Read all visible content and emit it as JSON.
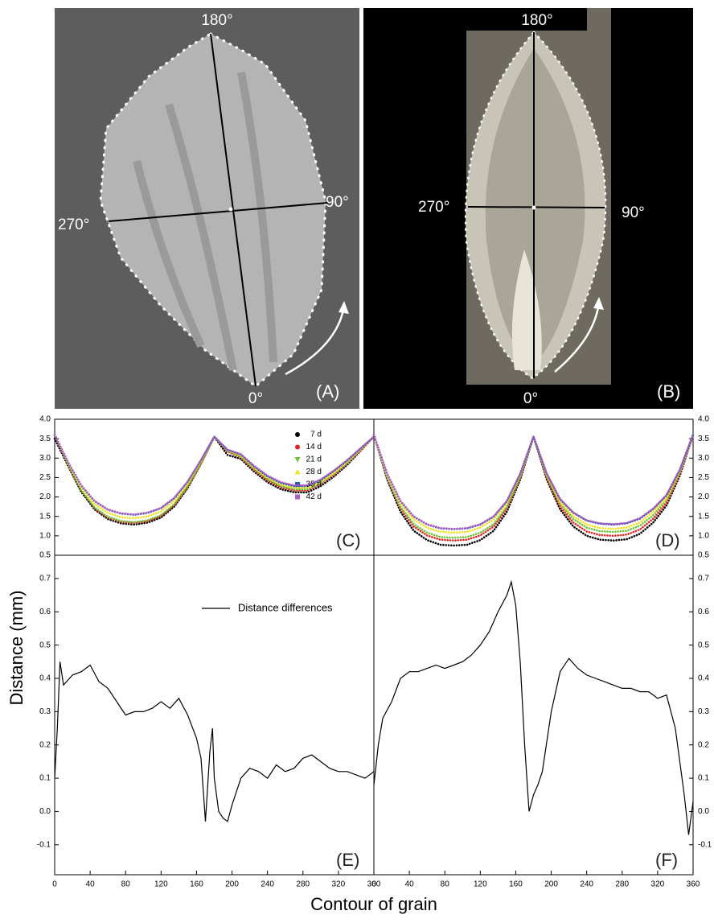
{
  "photos": [
    {
      "label": "(A)",
      "angles": [
        "180°",
        "90°",
        "270°",
        "0°"
      ]
    },
    {
      "label": "(B)",
      "angles": [
        "180°",
        "90°",
        "270°",
        "0°"
      ]
    }
  ],
  "ylabel": "Distance (mm)",
  "xlabel": "Contour of grain",
  "chart_data": [
    {
      "type": "line",
      "line_style": "dotted",
      "panel_label": "(C)",
      "yaxis": "left",
      "xlim": [
        0,
        360
      ],
      "ylim": [
        0.5,
        4.0
      ],
      "yticks": [
        0.5,
        {
          "value": 1,
          "label": "1.0"
        },
        1.5,
        {
          "value": 2,
          "label": "2.0"
        },
        2.5,
        {
          "value": 3,
          "label": "3.0"
        },
        3.5,
        {
          "value": 4,
          "label": "4.0"
        }
      ],
      "x": [
        0,
        15,
        30,
        45,
        60,
        75,
        90,
        105,
        120,
        135,
        150,
        165,
        180,
        195,
        210,
        225,
        240,
        255,
        270,
        285,
        300,
        315,
        330,
        345,
        360
      ],
      "series": [
        {
          "name": "7 d",
          "color": "#000000",
          "marker": "circle",
          "values": [
            3.5,
            2.81,
            2.13,
            1.68,
            1.43,
            1.32,
            1.29,
            1.34,
            1.47,
            1.76,
            2.23,
            2.86,
            3.55,
            3.08,
            2.98,
            2.65,
            2.38,
            2.2,
            2.12,
            2.12,
            2.28,
            2.53,
            2.83,
            3.19,
            3.55
          ]
        },
        {
          "name": "14 d",
          "color": "#e8231f",
          "marker": "circle",
          "values": [
            3.6,
            2.82,
            2.16,
            1.71,
            1.47,
            1.36,
            1.33,
            1.38,
            1.51,
            1.79,
            2.26,
            2.87,
            3.55,
            3.17,
            3.02,
            2.69,
            2.43,
            2.25,
            2.17,
            2.17,
            2.34,
            2.57,
            2.87,
            3.2,
            3.55
          ]
        },
        {
          "name": "21 d",
          "color": "#6cc23a",
          "marker": "triangle-down",
          "values": [
            3.6,
            2.83,
            2.17,
            1.73,
            1.49,
            1.38,
            1.35,
            1.4,
            1.53,
            1.81,
            2.27,
            2.88,
            3.55,
            3.19,
            3.03,
            2.72,
            2.46,
            2.28,
            2.2,
            2.2,
            2.36,
            2.6,
            2.88,
            3.22,
            3.55
          ]
        },
        {
          "name": "28 d",
          "color": "#f2e21c",
          "marker": "triangle",
          "values": [
            3.6,
            2.87,
            2.24,
            1.82,
            1.59,
            1.48,
            1.45,
            1.5,
            1.63,
            1.9,
            2.34,
            2.92,
            3.55,
            3.2,
            3.06,
            2.75,
            2.49,
            2.32,
            2.24,
            2.24,
            2.39,
            2.63,
            2.91,
            3.23,
            3.55
          ]
        },
        {
          "name": "35 d",
          "color": "#2b5ab0",
          "marker": "square",
          "values": [
            3.6,
            2.9,
            2.29,
            1.89,
            1.67,
            1.57,
            1.54,
            1.59,
            1.71,
            1.97,
            2.39,
            2.95,
            3.55,
            3.21,
            3.09,
            2.78,
            2.53,
            2.36,
            2.28,
            2.28,
            2.43,
            2.67,
            2.94,
            3.25,
            3.55
          ]
        },
        {
          "name": "42 d",
          "color": "#b05cc0",
          "marker": "square",
          "values": [
            3.6,
            2.9,
            2.3,
            1.9,
            1.68,
            1.58,
            1.55,
            1.6,
            1.72,
            1.98,
            2.4,
            2.95,
            3.55,
            3.22,
            3.1,
            2.8,
            2.55,
            2.38,
            2.3,
            2.3,
            2.45,
            2.68,
            2.95,
            3.25,
            3.55
          ]
        }
      ]
    },
    {
      "type": "line",
      "line_style": "dotted",
      "panel_label": "(D)",
      "yaxis": "right",
      "xlim": [
        0,
        360
      ],
      "ylim": [
        0.5,
        4.0
      ],
      "yticks": [
        0.5,
        {
          "value": 1,
          "label": "1.0"
        },
        1.5,
        {
          "value": 2,
          "label": "2.0"
        },
        2.5,
        {
          "value": 3,
          "label": "3.0"
        },
        3.5,
        {
          "value": 4,
          "label": "4.0"
        }
      ],
      "x": [
        0,
        15,
        30,
        45,
        60,
        75,
        90,
        105,
        120,
        135,
        150,
        165,
        180,
        195,
        210,
        225,
        240,
        255,
        270,
        285,
        300,
        315,
        330,
        345,
        360
      ],
      "series": [
        {
          "color": "#000000",
          "values": [
            3.6,
            2.45,
            1.62,
            1.13,
            0.89,
            0.77,
            0.75,
            0.77,
            0.89,
            1.13,
            1.62,
            2.45,
            3.55,
            2.45,
            1.68,
            1.24,
            1.0,
            0.9,
            0.88,
            0.91,
            1.05,
            1.34,
            1.78,
            2.55,
            3.6
          ]
        },
        {
          "color": "#e8231f",
          "values": [
            3.6,
            2.5,
            1.7,
            1.24,
            1.01,
            0.9,
            0.88,
            0.9,
            1.01,
            1.24,
            1.7,
            2.5,
            3.55,
            2.5,
            1.75,
            1.34,
            1.11,
            1.02,
            1.0,
            1.03,
            1.16,
            1.44,
            1.85,
            2.6,
            3.6
          ]
        },
        {
          "color": "#6cc23a",
          "values": [
            3.6,
            2.52,
            1.75,
            1.3,
            1.08,
            0.97,
            0.95,
            0.97,
            1.08,
            1.3,
            1.75,
            2.52,
            3.55,
            2.53,
            1.82,
            1.43,
            1.21,
            1.12,
            1.1,
            1.13,
            1.26,
            1.53,
            1.92,
            2.63,
            3.6
          ]
        },
        {
          "color": "#f2e21c",
          "values": [
            3.6,
            2.57,
            1.84,
            1.42,
            1.21,
            1.1,
            1.08,
            1.1,
            1.21,
            1.42,
            1.84,
            2.57,
            3.55,
            2.56,
            1.87,
            1.5,
            1.29,
            1.2,
            1.18,
            1.21,
            1.34,
            1.62,
            1.97,
            2.66,
            3.6
          ]
        },
        {
          "color": "#2b5ab0",
          "values": [
            3.6,
            2.6,
            1.89,
            1.49,
            1.29,
            1.19,
            1.17,
            1.19,
            1.29,
            1.49,
            1.89,
            2.6,
            3.55,
            2.6,
            1.94,
            1.59,
            1.39,
            1.31,
            1.29,
            1.32,
            1.44,
            1.69,
            2.04,
            2.7,
            3.6
          ]
        },
        {
          "color": "#b05cc0",
          "values": [
            3.6,
            2.6,
            1.9,
            1.5,
            1.3,
            1.2,
            1.18,
            1.2,
            1.3,
            1.5,
            1.9,
            2.6,
            3.55,
            2.6,
            1.95,
            1.6,
            1.4,
            1.32,
            1.3,
            1.33,
            1.45,
            1.7,
            2.05,
            2.7,
            3.6
          ]
        }
      ]
    },
    {
      "type": "line",
      "line_style": "solid",
      "panel_label": "(E)",
      "yaxis": "left",
      "xlim": [
        0,
        360
      ],
      "ylim": [
        -0.19,
        0.77
      ],
      "xticks": [
        0,
        40,
        80,
        120,
        160,
        200,
        240,
        280,
        320,
        360
      ],
      "yticks": [
        -0.1,
        {
          "value": 0,
          "label": "0.0"
        },
        0.1,
        0.2,
        0.3,
        0.4,
        0.5,
        0.6,
        0.7
      ],
      "x": [
        0,
        3,
        6,
        10,
        20,
        30,
        40,
        50,
        60,
        70,
        80,
        90,
        100,
        110,
        120,
        130,
        140,
        150,
        160,
        165,
        170,
        175,
        178,
        180,
        185,
        190,
        195,
        200,
        210,
        220,
        230,
        240,
        250,
        260,
        270,
        280,
        290,
        300,
        310,
        320,
        330,
        340,
        350,
        360
      ],
      "series": [
        {
          "name": "Distance differences",
          "color": "#000000",
          "values": [
            0.1,
            0.25,
            0.45,
            0.38,
            0.41,
            0.42,
            0.44,
            0.39,
            0.37,
            0.33,
            0.29,
            0.3,
            0.3,
            0.31,
            0.33,
            0.31,
            0.34,
            0.29,
            0.22,
            0.16,
            -0.03,
            0.18,
            0.25,
            0.1,
            0.0,
            -0.02,
            -0.03,
            0.02,
            0.1,
            0.13,
            0.12,
            0.1,
            0.14,
            0.12,
            0.13,
            0.16,
            0.17,
            0.15,
            0.13,
            0.12,
            0.12,
            0.11,
            0.1,
            0.12
          ]
        }
      ]
    },
    {
      "type": "line",
      "line_style": "solid",
      "panel_label": "(F)",
      "yaxis": "right",
      "xlim": [
        0,
        360
      ],
      "ylim": [
        -0.19,
        0.77
      ],
      "xticks": [
        0,
        40,
        80,
        120,
        160,
        200,
        240,
        280,
        320,
        360
      ],
      "yticks": [
        -0.1,
        {
          "value": 0,
          "label": "0.0"
        },
        0.1,
        0.2,
        0.3,
        0.4,
        0.5,
        0.6,
        0.7
      ],
      "x": [
        0,
        5,
        10,
        20,
        30,
        40,
        50,
        60,
        70,
        80,
        90,
        100,
        110,
        120,
        130,
        140,
        150,
        155,
        160,
        165,
        170,
        175,
        180,
        185,
        190,
        200,
        210,
        220,
        230,
        240,
        250,
        260,
        270,
        280,
        290,
        300,
        310,
        320,
        330,
        340,
        350,
        355,
        360
      ],
      "series": [
        {
          "color": "#000000",
          "values": [
            0.08,
            0.2,
            0.28,
            0.33,
            0.4,
            0.42,
            0.42,
            0.43,
            0.44,
            0.43,
            0.44,
            0.45,
            0.47,
            0.5,
            0.54,
            0.6,
            0.65,
            0.69,
            0.62,
            0.45,
            0.2,
            0.0,
            0.05,
            0.08,
            0.12,
            0.3,
            0.42,
            0.46,
            0.43,
            0.41,
            0.4,
            0.39,
            0.38,
            0.37,
            0.37,
            0.36,
            0.36,
            0.34,
            0.35,
            0.25,
            0.05,
            -0.07,
            0.03
          ]
        }
      ]
    }
  ]
}
